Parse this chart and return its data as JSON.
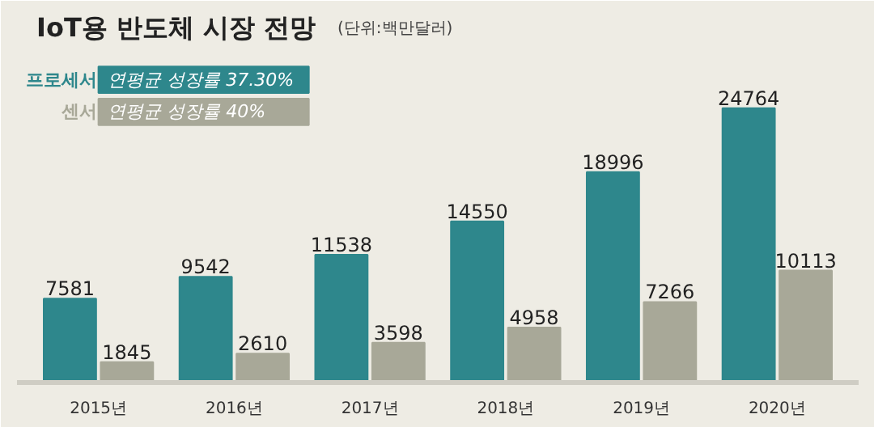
{
  "chart_data": {
    "type": "bar",
    "title": "IoT용 반도체 시장 전망",
    "subtitle": "(단위:백만달러)",
    "categories": [
      "2015년",
      "2016년",
      "2017년",
      "2018년",
      "2019년",
      "2020년"
    ],
    "series": [
      {
        "name": "프로세서",
        "color": "#2e878c",
        "values": [
          7581,
          9542,
          11538,
          14550,
          18996,
          24764
        ]
      },
      {
        "name": "센서",
        "color": "#a8a898",
        "values": [
          1845,
          2610,
          3598,
          4958,
          7266,
          10113
        ]
      }
    ],
    "annotations": [
      "연평균 성장률 37.30%",
      "연평균 성장률 40%"
    ],
    "data_labels": true,
    "legend": "top left",
    "grid": false
  }
}
